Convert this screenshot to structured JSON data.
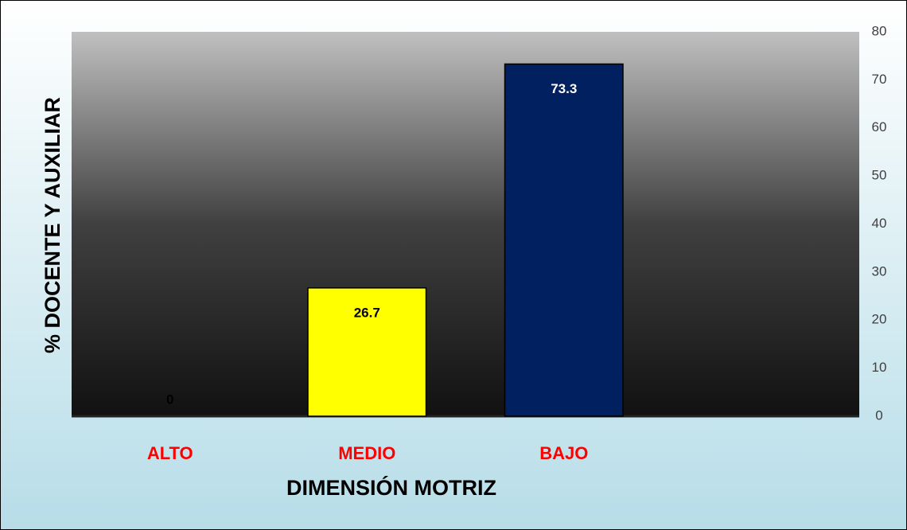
{
  "chart_data": {
    "type": "bar",
    "categories": [
      "ALTO",
      "MEDIO",
      "BAJO",
      null
    ],
    "values": [
      0,
      26.7,
      73.3,
      null
    ],
    "colors": [
      "#000000",
      "#ffff00",
      "#002060",
      null
    ],
    "xlabel": "DIMENSIÓN MOTRIZ",
    "ylabel": "% DOCENTE Y AUXILIAR",
    "ylim": [
      0,
      80
    ],
    "yticks": [
      0,
      10,
      20,
      30,
      40,
      50,
      60,
      70,
      80
    ],
    "y_axis_side": "right",
    "grid": false
  }
}
